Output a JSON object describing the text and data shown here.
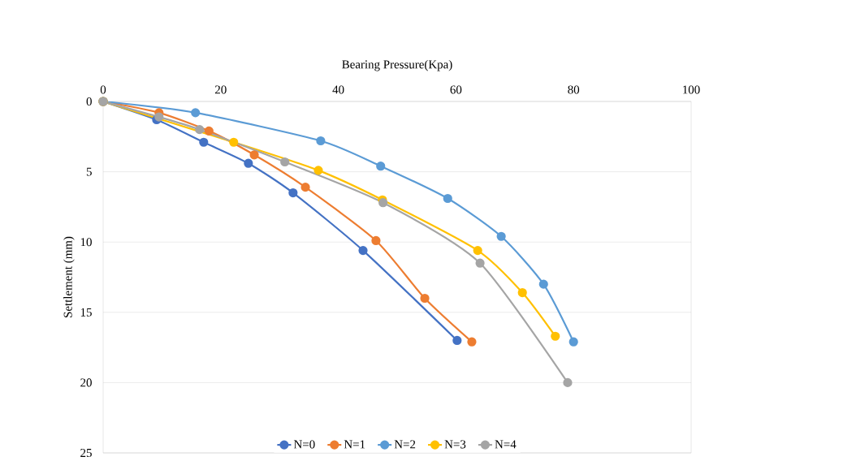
{
  "chart_data": {
    "type": "line",
    "xlabel": "Bearing Pressure(Kpa)",
    "ylabel": "Settlement (mm)",
    "xlim": [
      0,
      100
    ],
    "xticks": [
      0,
      20,
      40,
      60,
      80,
      100
    ],
    "ylim": [
      25,
      0
    ],
    "yticks": [
      0,
      5,
      10,
      15,
      20,
      25
    ],
    "grid": "y",
    "legend": "bottom",
    "marker": "circle",
    "line_style": "solid",
    "series": [
      {
        "name": "N=0",
        "color": "#4472c4",
        "x": [
          0,
          9.1,
          17.1,
          24.7,
          32.3,
          44.2,
          60.2
        ],
        "values": [
          0,
          1.3,
          2.9,
          4.4,
          6.5,
          10.6,
          17.0
        ]
      },
      {
        "name": "N=1",
        "color": "#ed7d31",
        "x": [
          0,
          9.5,
          18.0,
          25.7,
          34.4,
          46.4,
          54.7,
          62.7
        ],
        "values": [
          0,
          0.8,
          2.1,
          3.8,
          6.1,
          9.9,
          14.0,
          17.1
        ]
      },
      {
        "name": "N=2",
        "color": "#5b9bd5",
        "x": [
          0,
          15.7,
          37.0,
          47.2,
          58.6,
          67.7,
          74.9,
          80.0
        ],
        "values": [
          0,
          0.8,
          2.8,
          4.6,
          6.9,
          9.6,
          13.0,
          17.1
        ]
      },
      {
        "name": "N=3",
        "color": "#ffc000",
        "x": [
          0,
          16.4,
          22.2,
          36.6,
          47.5,
          63.7,
          71.3,
          76.9
        ],
        "values": [
          0,
          null,
          2.9,
          4.9,
          7.0,
          10.6,
          13.6,
          16.7
        ]
      },
      {
        "name": "N=4",
        "color": "#a5a5a5",
        "x": [
          0,
          9.5,
          16.4,
          30.9,
          47.6,
          64.1,
          79.0
        ],
        "values": [
          0,
          1.1,
          2.0,
          4.3,
          7.2,
          11.5,
          20.0
        ]
      }
    ]
  }
}
